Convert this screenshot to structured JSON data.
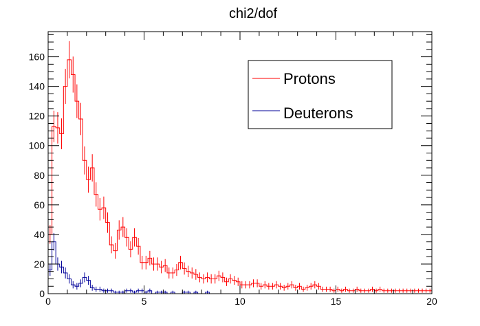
{
  "chart_data": {
    "type": "histogram",
    "title": "chi2/dof",
    "xlabel": "",
    "ylabel": "",
    "xlim": [
      0,
      20
    ],
    "ylim": [
      0,
      177
    ],
    "bin_width": 0.2,
    "x_ticks": [
      0,
      5,
      10,
      15,
      20
    ],
    "y_ticks": [
      0,
      20,
      40,
      60,
      80,
      100,
      120,
      140,
      160
    ],
    "legend_position": "top-right",
    "error_bars": true,
    "series": [
      {
        "name": "Protons",
        "color": "#ff0000",
        "values": [
          40,
          113,
          112,
          108,
          140,
          158,
          148,
          130,
          118,
          90,
          77,
          85,
          67,
          57,
          58,
          48,
          33,
          29,
          43,
          45,
          38,
          30,
          38,
          32,
          21,
          21,
          24,
          20,
          20,
          18,
          19,
          14,
          14,
          16,
          21,
          17,
          15,
          14,
          13,
          11,
          10,
          11,
          10,
          10,
          12,
          11,
          8,
          10,
          9,
          8,
          6,
          6,
          6,
          7,
          7,
          5,
          6,
          5,
          5,
          6,
          5,
          4,
          5,
          6,
          4,
          5,
          3,
          4,
          5,
          6,
          5,
          3,
          3,
          3,
          2,
          3,
          2,
          3,
          2,
          2,
          3,
          2,
          2,
          2,
          3,
          2,
          3,
          2,
          2,
          2,
          2,
          2,
          2,
          2,
          2,
          2,
          2,
          2,
          2,
          2
        ]
      },
      {
        "name": "Deuterons",
        "color": "#000099",
        "values": [
          16,
          35,
          20,
          18,
          14,
          10,
          6,
          5,
          7,
          11,
          9,
          4,
          3,
          3,
          2,
          2,
          2,
          1,
          1,
          1,
          2,
          2,
          1,
          2,
          2,
          1,
          2,
          0,
          1,
          1,
          1,
          0,
          1,
          0,
          0,
          1,
          1,
          0,
          1,
          0,
          0,
          1,
          0,
          0,
          0,
          0,
          0,
          0,
          0,
          0,
          0,
          0,
          0,
          0,
          0,
          0,
          0,
          0,
          0,
          0,
          0,
          0,
          0,
          0,
          0,
          0,
          0,
          0,
          0,
          0,
          0,
          0,
          0,
          0,
          0,
          0,
          0,
          0,
          0,
          0,
          0,
          0,
          0,
          0,
          0,
          0,
          0,
          0,
          0,
          0,
          0,
          0,
          0,
          0,
          0,
          0,
          0,
          0,
          0,
          0
        ]
      }
    ]
  }
}
